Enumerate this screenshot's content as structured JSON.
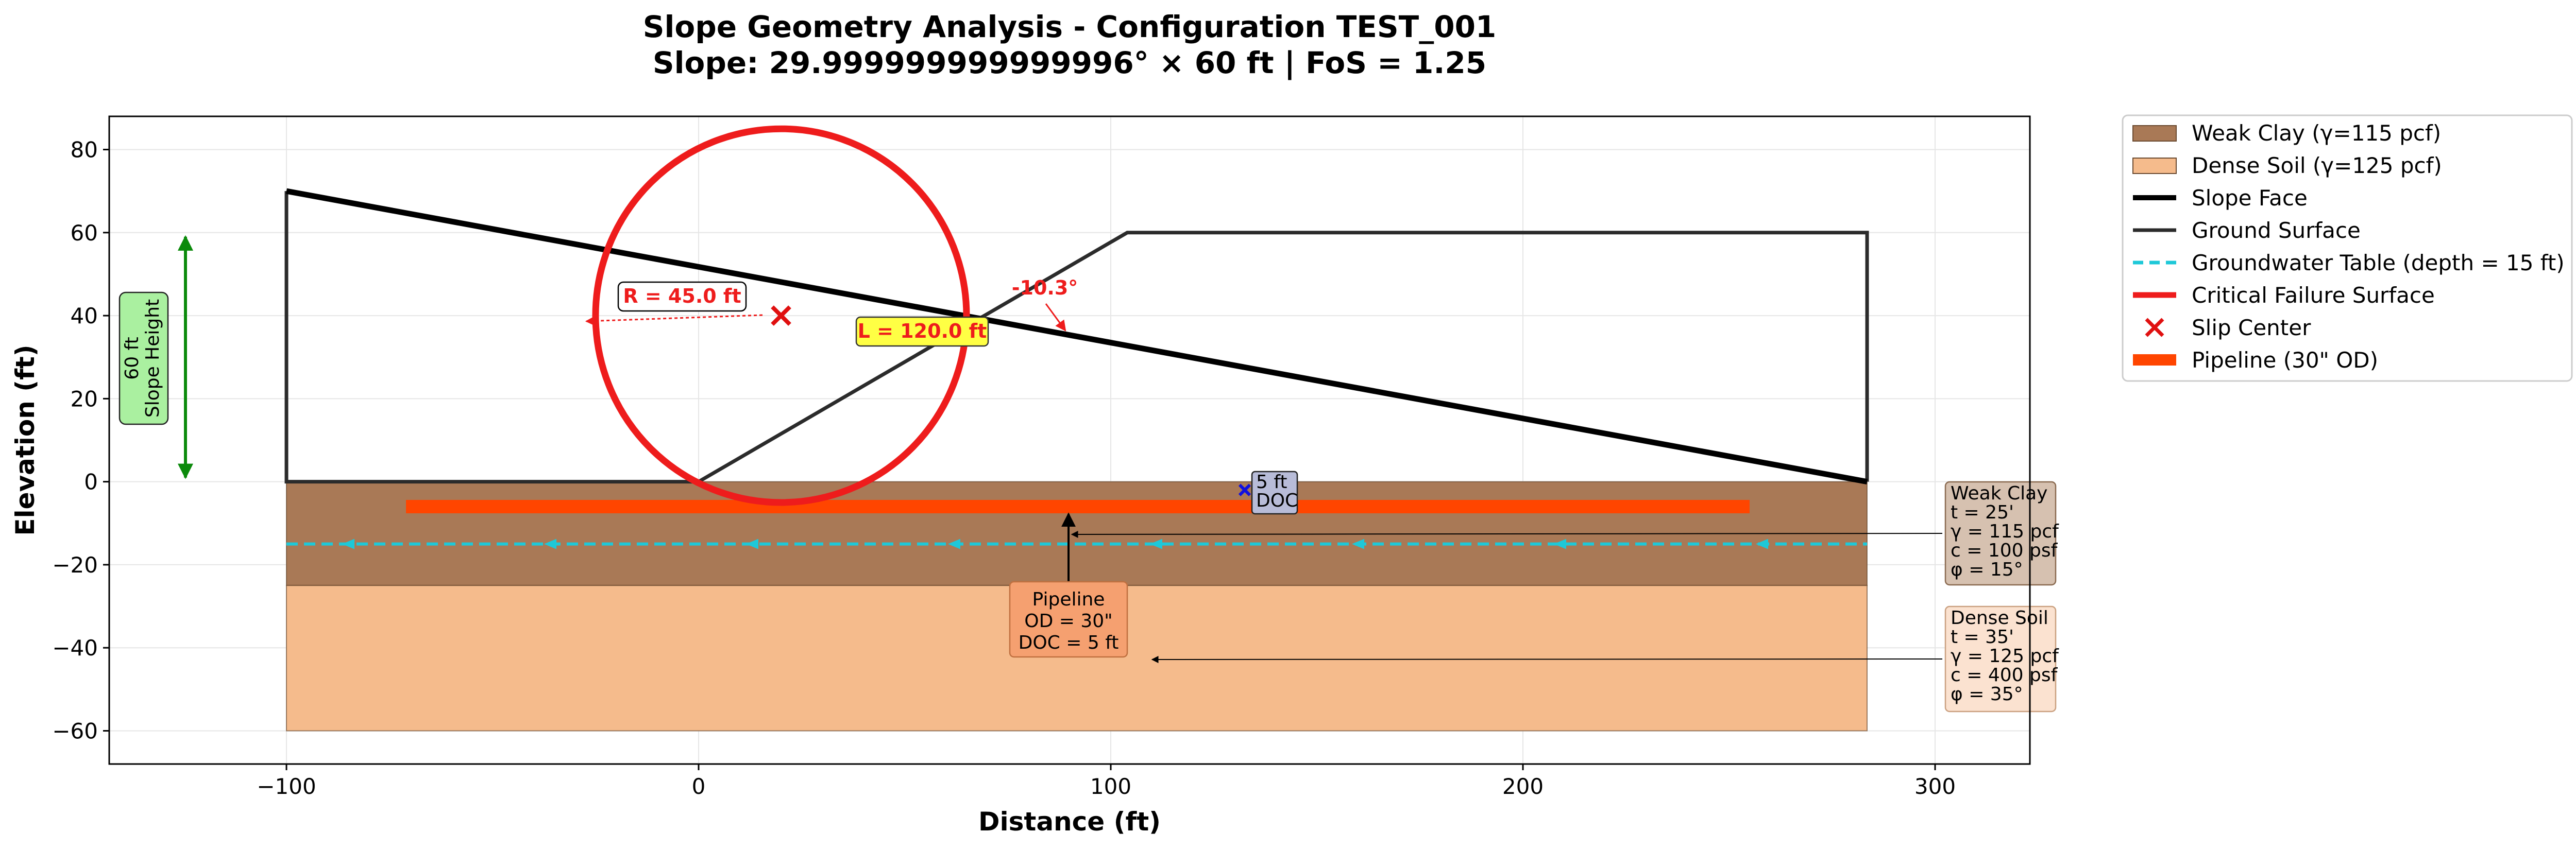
{
  "chart_data": {
    "type": "line",
    "title": "Slope Geometry Analysis - Configuration TEST_001",
    "subtitle": "Slope: 29.999999999999996° × 60 ft | FoS = 1.25",
    "xlabel": "Distance (ft)",
    "ylabel": "Elevation (ft)",
    "xlim": [
      -143,
      323
    ],
    "ylim": [
      -68,
      88
    ],
    "xticks": [
      -100,
      0,
      100,
      200,
      300
    ],
    "yticks": [
      -60,
      -40,
      -20,
      0,
      20,
      40,
      60,
      80
    ],
    "xtick_labels": [
      "−100",
      "0",
      "100",
      "200",
      "300"
    ],
    "ytick_labels": [
      "−60",
      "−40",
      "−20",
      "0",
      "20",
      "40",
      "60",
      "80"
    ],
    "grid": true,
    "legend_position": "outside-right",
    "colors": {
      "weak_clay": "#a97956",
      "dense_soil": "#f5bb8c",
      "slope_face": "#000000",
      "ground_surface": "#2b2b2b",
      "groundwater": "#1ec8d8",
      "failure_surface": "#ee1c1c",
      "slip_center": "#e01010",
      "pipeline": "#ff4500",
      "doc_marker": "#1010e0",
      "height_arrow": "#0b8a0b"
    },
    "layers": [
      {
        "name": "Weak Clay (γ=115 pcf)",
        "x": [
          -100,
          283.5
        ],
        "y_top": 0,
        "y_bottom": -25
      },
      {
        "name": "Dense Soil (γ=125 pcf)",
        "x": [
          -100,
          283.5
        ],
        "y_top": -25,
        "y_bottom": -60
      }
    ],
    "series": [
      {
        "name": "Slope Face",
        "x": [
          -100,
          283.5
        ],
        "y": [
          70,
          0
        ]
      },
      {
        "name": "Ground Surface",
        "x": [
          -100,
          -100,
          0,
          104,
          283.5,
          283.5
        ],
        "y": [
          70,
          0,
          0,
          60,
          60,
          0
        ]
      },
      {
        "name": "Groundwater Table (depth = 15 ft)",
        "x": [
          -100,
          283.5
        ],
        "y": [
          -15,
          -15
        ]
      },
      {
        "name": "Pipeline (30\" OD)",
        "x": [
          -71,
          255
        ],
        "y": [
          -6,
          -6
        ]
      }
    ],
    "failure_circle": {
      "name": "Critical Failure Surface",
      "center": [
        20,
        40
      ],
      "radius": 45
    },
    "slip_center": {
      "name": "Slip Center",
      "x": 20,
      "y": 40
    },
    "doc_marker": {
      "x": 132.5,
      "y": -2
    },
    "legend": [
      "Weak Clay (γ=115 pcf)",
      "Dense Soil (γ=125 pcf)",
      "Slope Face",
      "Ground Surface",
      "Groundwater Table (depth = 15 ft)",
      "Critical Failure Surface",
      "Slip Center",
      "Pipeline (30\" OD)"
    ],
    "annotations": {
      "radius_label": "R = 45.0 ft",
      "length_label": "L = 120.0 ft",
      "angle_label": "-10.3°",
      "height_label_line1": "60 ft",
      "height_label_line2": "Slope Height",
      "pipeline_label": [
        "Pipeline",
        "OD = 30\"",
        "DOC = 5 ft"
      ],
      "doc_label": [
        "5 ft",
        "DOC"
      ],
      "weak_clay_box": [
        "Weak Clay",
        "t = 25'",
        "γ = 115 pcf",
        "c = 100 psf",
        "φ = 15°"
      ],
      "dense_soil_box": [
        "Dense Soil",
        "t = 35'",
        "γ = 125 pcf",
        "c = 400 psf",
        "φ = 35°"
      ]
    }
  }
}
